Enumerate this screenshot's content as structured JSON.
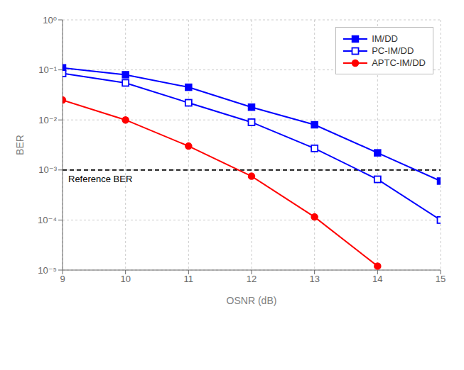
{
  "chart_data": {
    "type": "line",
    "log": "y",
    "xlabel": "OSNR (dB)",
    "ylabel": "BER",
    "x": [
      9,
      10,
      11,
      12,
      13,
      14,
      15
    ],
    "series": [
      {
        "name": "IM/DD",
        "color": "#0000FF",
        "marker": "square",
        "line_style": "solid",
        "values": [
          0.11,
          0.08,
          0.045,
          0.018,
          0.008,
          0.0022,
          0.0006
        ]
      },
      {
        "name": "PC-IM/DD",
        "color": "#0000FF",
        "marker": "open_square",
        "line_style": "solid",
        "values": [
          0.085,
          0.055,
          0.022,
          0.009,
          0.0027,
          0.00065,
          0.0001
        ]
      },
      {
        "name": "APTC-IM/DD",
        "color": "#FF0000",
        "marker": "circle",
        "line_style": "solid",
        "values": [
          0.025,
          0.01,
          0.003,
          0.00075,
          0.000115,
          1.2e-05,
          null
        ]
      }
    ],
    "reference_lines": [
      {
        "y": 0.001,
        "label": "Reference BER",
        "color": "#000000",
        "line_style": "dashed"
      }
    ],
    "xlim": [
      9,
      15
    ],
    "xticks": [
      9,
      10,
      11,
      12,
      13,
      14,
      15
    ],
    "ylim": [
      1e-05,
      1
    ],
    "yticks": [
      {
        "value": 1e-05,
        "label": "10⁻⁵"
      },
      {
        "value": 0.0001,
        "label": "10⁻⁴"
      },
      {
        "value": 0.001,
        "label": "10⁻³"
      },
      {
        "value": 0.01,
        "label": "10⁻²"
      },
      {
        "value": 0.1,
        "label": "10⁻¹"
      },
      {
        "value": 1,
        "label": "10⁰"
      }
    ],
    "grid": true,
    "legend": "upper right"
  }
}
